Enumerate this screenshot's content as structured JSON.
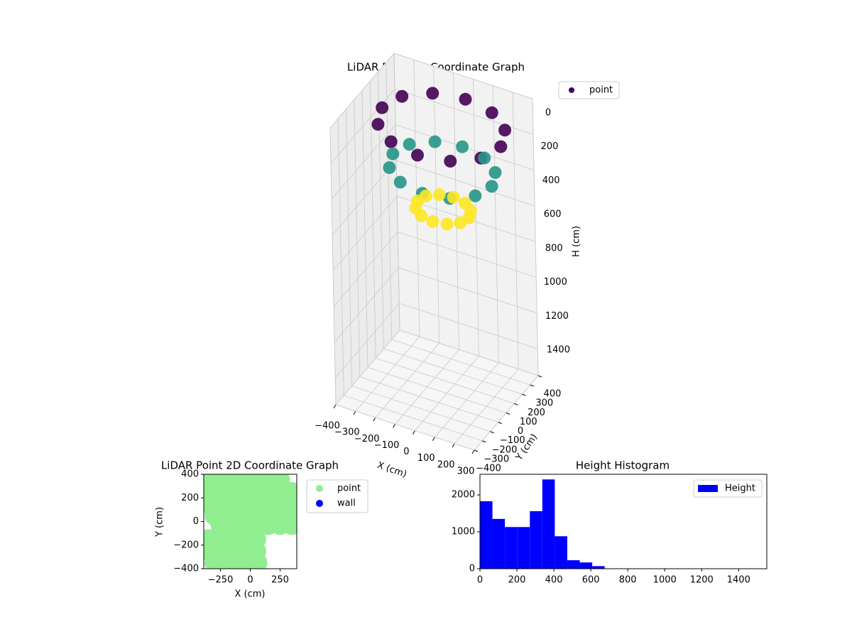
{
  "chart_data": [
    {
      "type": "scatter3d",
      "title": "LiDAR Point 3D Coordinate Graph",
      "xlabel": "X (cm)",
      "ylabel": "Y (cm)",
      "zlabel": "H (cm)",
      "series": [
        {
          "name": "point",
          "color": "#440154",
          "x": [
            300,
            260,
            150,
            0,
            -150,
            -260,
            -300,
            -260,
            -150,
            0,
            150,
            260,
            250,
            217,
            125,
            0,
            -125,
            -217,
            -250,
            -217,
            -125,
            0,
            125,
            217,
            130,
            113,
            65,
            0,
            -65,
            -113,
            -130,
            -113,
            -65,
            0,
            65,
            113
          ],
          "y": [
            0,
            150,
            260,
            300,
            260,
            150,
            0,
            -150,
            -260,
            -300,
            -260,
            -150,
            0,
            125,
            217,
            250,
            217,
            125,
            0,
            -125,
            -217,
            -250,
            -217,
            -125,
            0,
            65,
            113,
            130,
            113,
            65,
            0,
            -65,
            -113,
            -130,
            -113,
            -65
          ],
          "z": [
            60,
            60,
            60,
            60,
            60,
            60,
            60,
            60,
            60,
            60,
            60,
            60,
            300,
            300,
            300,
            300,
            300,
            300,
            300,
            300,
            300,
            300,
            300,
            300,
            520,
            520,
            520,
            520,
            520,
            520,
            520,
            520,
            520,
            520,
            520,
            520
          ]
        }
      ],
      "colormap": [
        "#440154",
        "#3b528b",
        "#21918c",
        "#5ec962",
        "#fde725"
      ],
      "xlim": [
        -400,
        300
      ],
      "ylim": [
        -400,
        400
      ],
      "zlim": [
        0,
        1550
      ],
      "zinvert": true,
      "xticks": [
        {
          "value": -400,
          "label": "−400"
        },
        {
          "value": -300,
          "label": "−300"
        },
        {
          "value": -200,
          "label": "−200"
        },
        {
          "value": -100,
          "label": "−100"
        },
        0,
        100,
        200,
        300
      ],
      "yticks": [
        {
          "value": -400,
          "label": "−400"
        },
        {
          "value": -300,
          "label": "−300"
        },
        {
          "value": -200,
          "label": "−200"
        },
        {
          "value": -100,
          "label": "−100"
        },
        0,
        100,
        200,
        300,
        400
      ],
      "zticks": [
        0,
        200,
        400,
        600,
        800,
        1000,
        1200,
        1400
      ],
      "grid": true,
      "legend": "upper right"
    },
    {
      "type": "scatter",
      "title": "LiDAR Point 2D Coordinate Graph",
      "xlabel": "X (cm)",
      "ylabel": "Y (cm)",
      "series": [
        {
          "name": "point",
          "color": "#90ee90",
          "x": [
            -350,
            -250,
            -150,
            -50,
            50,
            150,
            250,
            -350,
            -250,
            -150,
            -50,
            50,
            150,
            250,
            350,
            -350,
            -250,
            -150,
            -50,
            50,
            150,
            250,
            350,
            -300,
            -200,
            -100,
            0,
            100,
            200,
            300,
            370,
            -250,
            -150,
            -50,
            50,
            150,
            250,
            350,
            -350,
            -250,
            -150,
            -50,
            50,
            -350,
            -250,
            -150,
            -50,
            50,
            -300,
            -200,
            -100,
            0,
            60
          ],
          "y": [
            350,
            350,
            350,
            350,
            350,
            350,
            350,
            250,
            250,
            250,
            250,
            250,
            250,
            250,
            250,
            150,
            150,
            150,
            150,
            150,
            150,
            150,
            150,
            50,
            50,
            50,
            50,
            50,
            50,
            50,
            50,
            -30,
            -30,
            -30,
            -30,
            -30,
            -30,
            -30,
            -150,
            -150,
            -150,
            -150,
            -150,
            -250,
            -250,
            -250,
            -250,
            -250,
            -350,
            -350,
            -350,
            -350,
            -350
          ]
        },
        {
          "name": "wall",
          "color": "#0000ff",
          "x": [],
          "y": []
        }
      ],
      "xlim": [
        -390,
        390
      ],
      "ylim": [
        -400,
        400
      ],
      "xticks": [
        {
          "value": -250,
          "label": "−250"
        },
        0,
        250
      ],
      "yticks": [
        {
          "value": -400,
          "label": "−400"
        },
        {
          "value": -200,
          "label": "−200"
        },
        0,
        200,
        400
      ],
      "legend": "outside upper right"
    },
    {
      "type": "histogram",
      "title": "Height Histogram",
      "bins": [
        0,
        67.5,
        135,
        202.5,
        270,
        337.5,
        405,
        472.5,
        540,
        607.5,
        675,
        742.5,
        810,
        877.5,
        945,
        1012.5,
        1080,
        1147.5,
        1215,
        1282.5,
        1350,
        1417.5,
        1485,
        1552.5
      ],
      "series": [
        {
          "name": "Height",
          "color": "#0000ff",
          "values": [
            1830,
            1350,
            1130,
            1130,
            1560,
            2420,
            880,
            230,
            170,
            70,
            0,
            0,
            0,
            0,
            0,
            0,
            0,
            0,
            0,
            0,
            0,
            0,
            0
          ]
        }
      ],
      "xlim": [
        0,
        1552.5
      ],
      "ylim": [
        0,
        2560
      ],
      "xticks": [
        0,
        200,
        400,
        600,
        800,
        1000,
        1200,
        1400
      ],
      "yticks": [
        0,
        1000,
        2000
      ],
      "legend": "upper right"
    }
  ]
}
